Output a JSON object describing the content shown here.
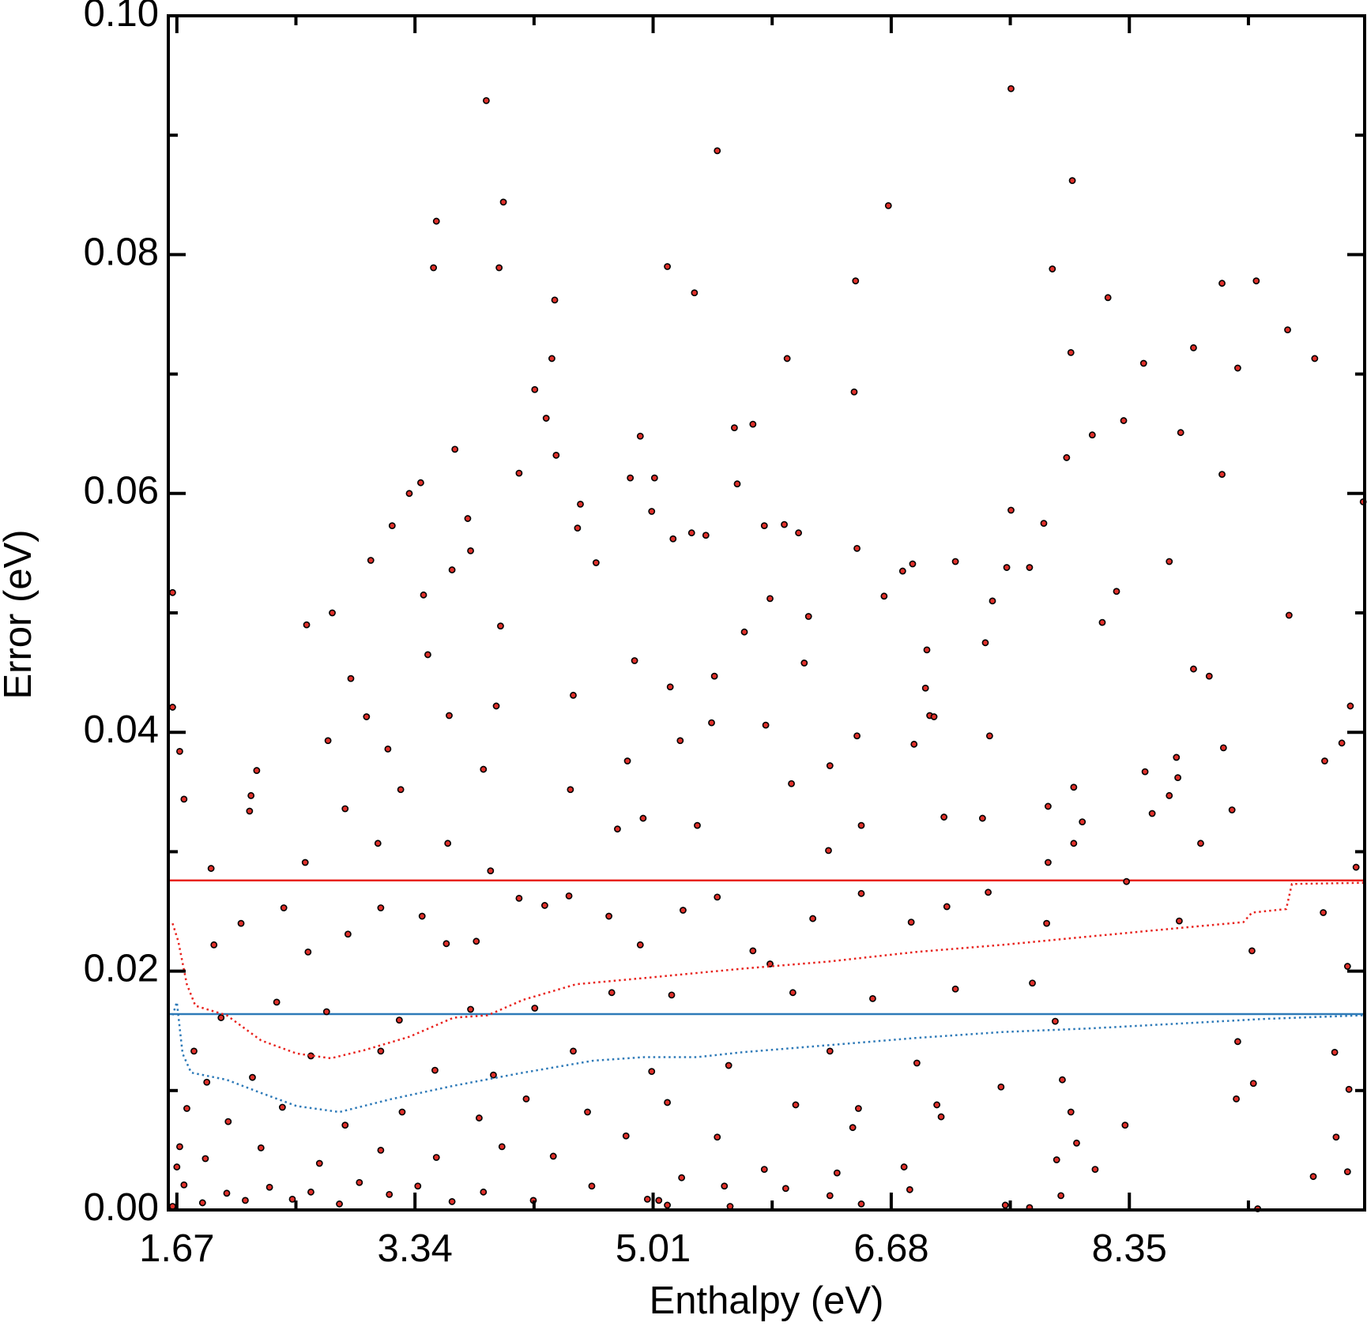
{
  "chart_data": {
    "type": "scatter",
    "xlabel": "Enthalpy (eV)",
    "ylabel": "Error (eV)",
    "xlim": [
      1.61,
      10.0
    ],
    "ylim": [
      0,
      0.1
    ],
    "xticks": [
      1.67,
      3.34,
      5.01,
      6.68,
      8.35
    ],
    "xminorticks": [
      2.505,
      4.175,
      5.845,
      7.515,
      9.185
    ],
    "yticks": [
      {
        "value": 0,
        "label": "0.00"
      },
      0.02,
      0.04,
      0.06,
      0.08,
      {
        "value": 0.1,
        "label": "0.10"
      }
    ],
    "yminorticks": [
      0.01,
      0.03,
      0.05,
      0.07,
      0.09
    ],
    "hlines": [
      {
        "value": 0.0276,
        "color": "#e8231e"
      },
      {
        "value": 0.0164,
        "color": "#2e7ab8"
      }
    ],
    "series": [
      {
        "type": "scatter",
        "color": "#e0302a",
        "edgecolor": "#000000",
        "x": [
          3.84,
          7.52,
          5.46,
          7.95,
          3.49,
          3.96,
          6.66,
          3.47,
          3.93,
          5.11,
          7.81,
          5.3,
          6.43,
          9.0,
          9.24,
          4.32,
          8.2,
          9.46,
          9.65,
          4.3,
          5.95,
          7.94,
          8.45,
          8.8,
          9.11,
          4.18,
          6.42,
          4.26,
          5.71,
          5.58,
          4.92,
          8.31,
          8.09,
          8.71,
          3.62,
          4.33,
          7.91,
          4.07,
          9.0,
          3.38,
          4.85,
          5.6,
          5.02,
          3.3,
          9.99,
          5.0,
          7.52,
          4.5,
          3.71,
          3.18,
          5.79,
          5.93,
          7.75,
          4.48,
          5.15,
          5.28,
          5.38,
          6.03,
          3.73,
          6.44,
          3.03,
          6.83,
          7.13,
          8.63,
          3.6,
          4.61,
          6.76,
          7.49,
          7.65,
          3.4,
          6.63,
          8.26,
          2.58,
          2.76,
          3.94,
          5.65,
          5.83,
          6.1,
          7.39,
          9.47,
          8.16,
          3.43,
          4.88,
          6.07,
          7.34,
          6.93,
          2.89,
          8.8,
          8.91,
          9.9,
          5.13,
          5.44,
          3.91,
          4.45,
          6.92,
          3.0,
          3.58,
          5.42,
          5.8,
          6.95,
          6.98,
          7.37,
          2.73,
          5.2,
          6.44,
          6.84,
          9.84,
          9.01,
          9.72,
          8.68,
          3.15,
          2.23,
          3.82,
          4.83,
          6.25,
          8.46,
          8.69,
          7.96,
          5.98,
          2.19,
          3.24,
          4.43,
          8.63,
          2.18,
          2.85,
          9.07,
          8.51,
          7.78,
          4.94,
          7.05,
          8.02,
          7.32,
          5.32,
          6.47,
          3.08,
          3.57,
          4.76,
          8.85,
          7.96,
          8.33,
          7.78,
          6.24,
          3.87,
          1.72,
          1.69,
          1.64,
          1.64,
          1.91,
          2.57,
          9.94,
          1.93,
          2.12,
          2.42,
          2.59,
          2.87,
          3.1,
          3.39,
          3.56,
          3.77,
          4.07,
          4.25,
          4.42,
          4.7,
          4.92,
          5.22,
          5.46,
          5.71,
          5.83,
          6.13,
          6.47,
          6.82,
          7.07,
          7.36,
          7.77,
          8.7,
          9.21,
          9.88,
          9.71,
          7.67,
          7.13,
          6.55,
          5.99,
          5.14,
          4.72,
          4.18,
          3.73,
          3.23,
          2.72,
          2.37,
          1.98,
          1.79,
          7.83,
          6.86,
          9.11,
          9.79,
          6.25,
          5.54,
          5.0,
          4.45,
          3.89,
          3.48,
          3.1,
          2.61,
          2.2,
          1.88,
          7.45,
          7.88,
          9.22,
          9.89,
          9.1,
          7.0,
          6.45,
          6.01,
          5.11,
          4.55,
          4.12,
          3.79,
          3.25,
          2.85,
          2.41,
          2.03,
          1.74,
          7.94,
          8.32,
          9.8,
          7.03,
          6.41,
          5.46,
          4.82,
          4.31,
          3.95,
          3.49,
          3.1,
          2.67,
          2.26,
          1.87,
          1.69,
          7.98,
          7.84,
          8.11,
          6.77,
          6.3,
          5.79,
          5.51,
          5.21,
          5.05,
          5.11,
          4.97,
          4.58,
          4.17,
          3.82,
          3.6,
          3.36,
          3.16,
          2.95,
          2.81,
          2.61,
          2.48,
          2.32,
          2.15,
          2.02,
          1.85,
          1.72,
          1.67,
          1.64,
          7.48,
          7.65,
          7.87,
          9.88,
          9.64,
          9.25,
          6.47,
          6.81,
          6.25,
          5.94,
          5.55
        ],
        "y": [
          0.0929,
          0.0939,
          0.0887,
          0.0862,
          0.0828,
          0.0844,
          0.0841,
          0.0789,
          0.0789,
          0.079,
          0.0788,
          0.0768,
          0.0778,
          0.0776,
          0.0778,
          0.0762,
          0.0764,
          0.0737,
          0.0713,
          0.0713,
          0.0713,
          0.0718,
          0.0709,
          0.0722,
          0.0705,
          0.0687,
          0.0685,
          0.0663,
          0.0658,
          0.0655,
          0.0648,
          0.0661,
          0.0649,
          0.0651,
          0.0637,
          0.0632,
          0.063,
          0.0617,
          0.0616,
          0.0609,
          0.0613,
          0.0608,
          0.0613,
          0.06,
          0.0593,
          0.0585,
          0.0586,
          0.0591,
          0.0579,
          0.0573,
          0.0573,
          0.0574,
          0.0575,
          0.0571,
          0.0562,
          0.0567,
          0.0565,
          0.0567,
          0.0552,
          0.0554,
          0.0544,
          0.0541,
          0.0543,
          0.0543,
          0.0536,
          0.0542,
          0.0535,
          0.0538,
          0.0538,
          0.0515,
          0.0514,
          0.0518,
          0.049,
          0.05,
          0.0489,
          0.0484,
          0.0512,
          0.0497,
          0.051,
          0.0498,
          0.0492,
          0.0465,
          0.046,
          0.0458,
          0.0475,
          0.0469,
          0.0445,
          0.0453,
          0.0447,
          0.0422,
          0.0438,
          0.0447,
          0.0422,
          0.0431,
          0.0437,
          0.0413,
          0.0414,
          0.0408,
          0.0406,
          0.0414,
          0.0413,
          0.0397,
          0.0393,
          0.0393,
          0.0397,
          0.039,
          0.0391,
          0.0387,
          0.0376,
          0.0379,
          0.0386,
          0.0368,
          0.0369,
          0.0376,
          0.0372,
          0.0367,
          0.0362,
          0.0354,
          0.0357,
          0.0347,
          0.0352,
          0.0352,
          0.0347,
          0.0334,
          0.0336,
          0.0335,
          0.0332,
          0.0338,
          0.0328,
          0.0329,
          0.0325,
          0.0328,
          0.0322,
          0.0322,
          0.0307,
          0.0307,
          0.0319,
          0.0307,
          0.0307,
          0.0275,
          0.0291,
          0.0301,
          0.0284,
          0.0344,
          0.0384,
          0.0421,
          0.0517,
          0.0286,
          0.0291,
          0.0287,
          0.0222,
          0.024,
          0.0253,
          0.0216,
          0.0231,
          0.0253,
          0.0246,
          0.0223,
          0.0225,
          0.0261,
          0.0255,
          0.0263,
          0.0246,
          0.0222,
          0.0251,
          0.0262,
          0.0217,
          0.0206,
          0.0244,
          0.0265,
          0.0241,
          0.0254,
          0.0266,
          0.024,
          0.0242,
          0.0217,
          0.0204,
          0.0249,
          0.019,
          0.0185,
          0.0177,
          0.0182,
          0.018,
          0.0182,
          0.0169,
          0.0168,
          0.0159,
          0.0166,
          0.0174,
          0.0161,
          0.0133,
          0.0158,
          0.0123,
          0.0141,
          0.0132,
          0.0133,
          0.0121,
          0.0116,
          0.0133,
          0.0113,
          0.0117,
          0.0133,
          0.0129,
          0.0111,
          0.0107,
          0.0103,
          0.0109,
          0.0106,
          0.0101,
          0.0093,
          0.0088,
          0.0085,
          0.0088,
          0.009,
          0.0082,
          0.0093,
          0.0077,
          0.0082,
          0.0071,
          0.0086,
          0.0074,
          0.0085,
          0.0082,
          0.0071,
          0.0061,
          0.0078,
          0.0069,
          0.0061,
          0.0062,
          0.0045,
          0.0053,
          0.0044,
          0.005,
          0.0039,
          0.0052,
          0.0043,
          0.0053,
          0.0056,
          0.0042,
          0.0034,
          0.0036,
          0.0031,
          0.0034,
          0.002,
          0.0027,
          0.0008,
          0.0004,
          0.0009,
          0.002,
          0.0008,
          0.0015,
          0.0007,
          0.002,
          0.0013,
          0.0023,
          0.0005,
          0.0015,
          0.0009,
          0.0019,
          0.0008,
          0.0014,
          0.0006,
          0.0021,
          0.0036,
          0.0003,
          0.0004,
          0.0002,
          0.0012,
          0.0032,
          0.0028,
          0.0001,
          0.0005,
          0.0017,
          0.0012,
          0.0018,
          0.0003
        ]
      },
      {
        "type": "line",
        "style": "dotted",
        "color": "#e8231e",
        "x": [
          1.64,
          1.68,
          1.74,
          1.8,
          2.02,
          2.26,
          2.51,
          2.75,
          2.99,
          3.3,
          3.61,
          3.85,
          4.1,
          4.47,
          5.02,
          5.63,
          6.24,
          6.85,
          7.46,
          8.07,
          8.69,
          9.15,
          9.21,
          9.45,
          9.49,
          9.99
        ],
        "y": [
          0.024,
          0.0225,
          0.0189,
          0.0171,
          0.0163,
          0.0142,
          0.0131,
          0.0127,
          0.0134,
          0.0145,
          0.0161,
          0.0163,
          0.0176,
          0.0189,
          0.0195,
          0.0202,
          0.0208,
          0.0216,
          0.0222,
          0.0229,
          0.0236,
          0.0241,
          0.0249,
          0.0252,
          0.0273,
          0.0274
        ]
      },
      {
        "type": "line",
        "style": "dotted",
        "color": "#2e7ab8",
        "x": [
          1.64,
          1.67,
          1.71,
          1.77,
          2.02,
          2.26,
          2.51,
          2.81,
          3.18,
          3.61,
          4.1,
          4.59,
          4.95,
          5.32,
          5.63,
          6.24,
          6.85,
          7.46,
          8.07,
          8.69,
          9.3,
          9.99
        ],
        "y": [
          0.0163,
          0.0174,
          0.0131,
          0.0115,
          0.0109,
          0.0098,
          0.0087,
          0.0082,
          0.0093,
          0.0104,
          0.0115,
          0.0125,
          0.0128,
          0.0128,
          0.0132,
          0.0138,
          0.0144,
          0.0149,
          0.0152,
          0.0156,
          0.016,
          0.0163
        ]
      }
    ]
  }
}
